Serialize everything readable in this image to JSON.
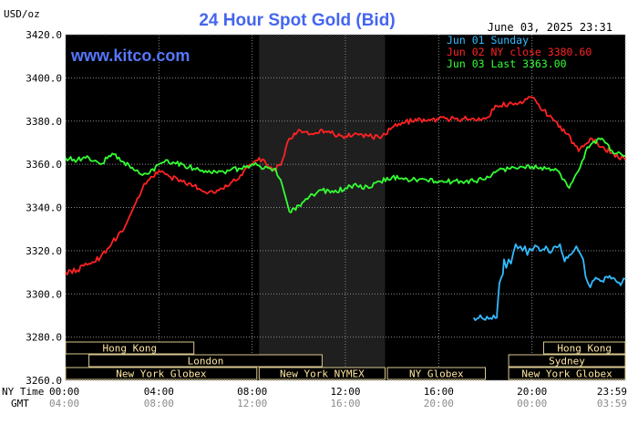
{
  "chart_data": {
    "type": "line",
    "title": "24 Hour Spot Gold (Bid)",
    "watermark": "www.kitco.com",
    "date_label": "June 03, 2025 23:31",
    "ylabel": "USD/oz",
    "ylim": [
      3260,
      3420
    ],
    "y_ticks": [
      "3420.0",
      "3400.0",
      "3380.0",
      "3360.0",
      "3340.0",
      "3320.0",
      "3300.0",
      "3280.0",
      "3260.0"
    ],
    "xlim": [
      0,
      24
    ],
    "x_ticks": [
      {
        "x": 0,
        "ny": "00:00",
        "gmt": "04:00"
      },
      {
        "x": 4,
        "ny": "04:00",
        "gmt": "08:00"
      },
      {
        "x": 8,
        "ny": "08:00",
        "gmt": "12:00"
      },
      {
        "x": 12,
        "ny": "12:00",
        "gmt": "16:00"
      },
      {
        "x": 16,
        "ny": "16:00",
        "gmt": "20:00"
      },
      {
        "x": 20,
        "ny": "20:00",
        "gmt": "00:00"
      },
      {
        "x": 24,
        "ny": "23:59",
        "gmt": "03:59"
      }
    ],
    "x_row_labels": {
      "ny": "NY Time",
      "gmt": "GMT"
    },
    "shaded_regions": [
      [
        8.3,
        13.7
      ]
    ],
    "sessions": [
      {
        "label": "Hong Kong",
        "start": 0,
        "end": 5.5,
        "row": 0
      },
      {
        "label": "Hong Kong",
        "start": 20.5,
        "end": 24,
        "row": 0
      },
      {
        "label": "London",
        "start": 1,
        "end": 11,
        "row": 1
      },
      {
        "label": "Sydney",
        "start": 19,
        "end": 24,
        "row": 1
      },
      {
        "label": "New York Globex",
        "start": 0,
        "end": 8.2,
        "row": 2
      },
      {
        "label": "New York NYMEX",
        "start": 8.3,
        "end": 13.7,
        "row": 2
      },
      {
        "label": "NY Globex",
        "start": 13.8,
        "end": 18,
        "row": 2
      },
      {
        "label": "New York Globex",
        "start": 19,
        "end": 24,
        "row": 2
      }
    ],
    "legend": {
      "placement": "top-right"
    },
    "series": [
      {
        "name": "Jun 01 Sunday",
        "color": "#33bbff",
        "x": [
          17.5,
          18.5,
          18.5,
          18.6,
          18.7,
          18.75,
          18.8,
          18.9,
          19.0,
          19.1,
          19.2,
          19.3,
          19.4,
          19.5,
          19.6,
          19.7,
          19.8,
          19.9,
          20.0,
          20.2,
          20.4,
          20.6,
          20.8,
          21.0,
          21.2,
          21.4,
          21.6,
          21.8,
          21.9,
          22.0,
          22.1,
          22.2,
          22.3,
          22.4,
          22.5,
          22.6,
          22.8,
          23.0,
          23.2,
          23.4,
          23.6,
          23.8,
          24.0
        ],
        "y": [
          3289,
          3289,
          3291,
          3305,
          3308,
          3309,
          3316,
          3312,
          3316,
          3314,
          3319,
          3323,
          3321,
          3322,
          3320,
          3322,
          3318,
          3321,
          3320,
          3322,
          3320,
          3322,
          3319,
          3322,
          3323,
          3315,
          3318,
          3320,
          3322,
          3320,
          3318,
          3316,
          3308,
          3305,
          3303,
          3306,
          3307,
          3306,
          3308,
          3307,
          3306,
          3304,
          3307
        ]
      },
      {
        "name": "Jun 02 NY close 3380.60",
        "color": "#ff2222",
        "x": [
          0,
          0.5,
          1.0,
          1.5,
          2.0,
          2.5,
          3.0,
          3.3,
          3.6,
          4.0,
          4.5,
          5.0,
          5.5,
          6.0,
          6.5,
          7.0,
          7.5,
          8.0,
          8.3,
          8.6,
          9.0,
          9.3,
          9.6,
          10.0,
          10.5,
          11.0,
          11.5,
          12.0,
          12.5,
          13.0,
          13.5,
          14.0,
          14.5,
          15.0,
          15.5,
          16.0,
          17.0,
          18.0,
          18.5,
          19.0,
          19.5,
          20.0,
          20.5,
          21.0,
          21.5,
          22.0,
          22.5,
          23.0,
          23.5,
          24.0
        ],
        "y": [
          3310,
          3311,
          3314,
          3317,
          3324,
          3330,
          3342,
          3349,
          3353,
          3357,
          3354,
          3352,
          3350,
          3347,
          3348,
          3350,
          3355,
          3360,
          3363,
          3360,
          3357,
          3362,
          3372,
          3376,
          3374,
          3376,
          3374,
          3373,
          3374,
          3373,
          3372,
          3377,
          3379,
          3381,
          3380,
          3381,
          3381,
          3381,
          3387,
          3388,
          3389,
          3391,
          3385,
          3380,
          3374,
          3366,
          3372,
          3368,
          3365,
          3362
        ]
      },
      {
        "name": "Jun 03 Last 3363.00",
        "color": "#33ff33",
        "x": [
          0,
          0.5,
          1.0,
          1.5,
          2.0,
          2.5,
          3.0,
          3.3,
          3.6,
          4.0,
          4.3,
          4.6,
          5.0,
          5.5,
          6.0,
          6.5,
          7.0,
          7.5,
          8.0,
          8.5,
          9.0,
          9.3,
          9.6,
          10.0,
          10.3,
          10.6,
          11.0,
          11.5,
          12.0,
          12.5,
          13.0,
          13.5,
          14.0,
          14.5,
          15.0,
          16.0,
          17.0,
          18.0,
          18.5,
          19.0,
          19.5,
          20.0,
          20.3,
          20.6,
          21.0,
          21.3,
          21.6,
          22.0,
          22.3,
          22.6,
          23.0,
          23.5,
          24.0
        ],
        "y": [
          3363,
          3362,
          3363,
          3360,
          3365,
          3361,
          3357,
          3355,
          3356,
          3360,
          3362,
          3361,
          3360,
          3358,
          3357,
          3356,
          3357,
          3358,
          3360,
          3358,
          3358,
          3350,
          3338,
          3341,
          3344,
          3346,
          3348,
          3347,
          3349,
          3350,
          3349,
          3352,
          3354,
          3353,
          3353,
          3352,
          3352,
          3353,
          3357,
          3358,
          3359,
          3359,
          3358,
          3358,
          3358,
          3353,
          3349,
          3357,
          3366,
          3370,
          3372,
          3365,
          3364
        ]
      }
    ]
  }
}
